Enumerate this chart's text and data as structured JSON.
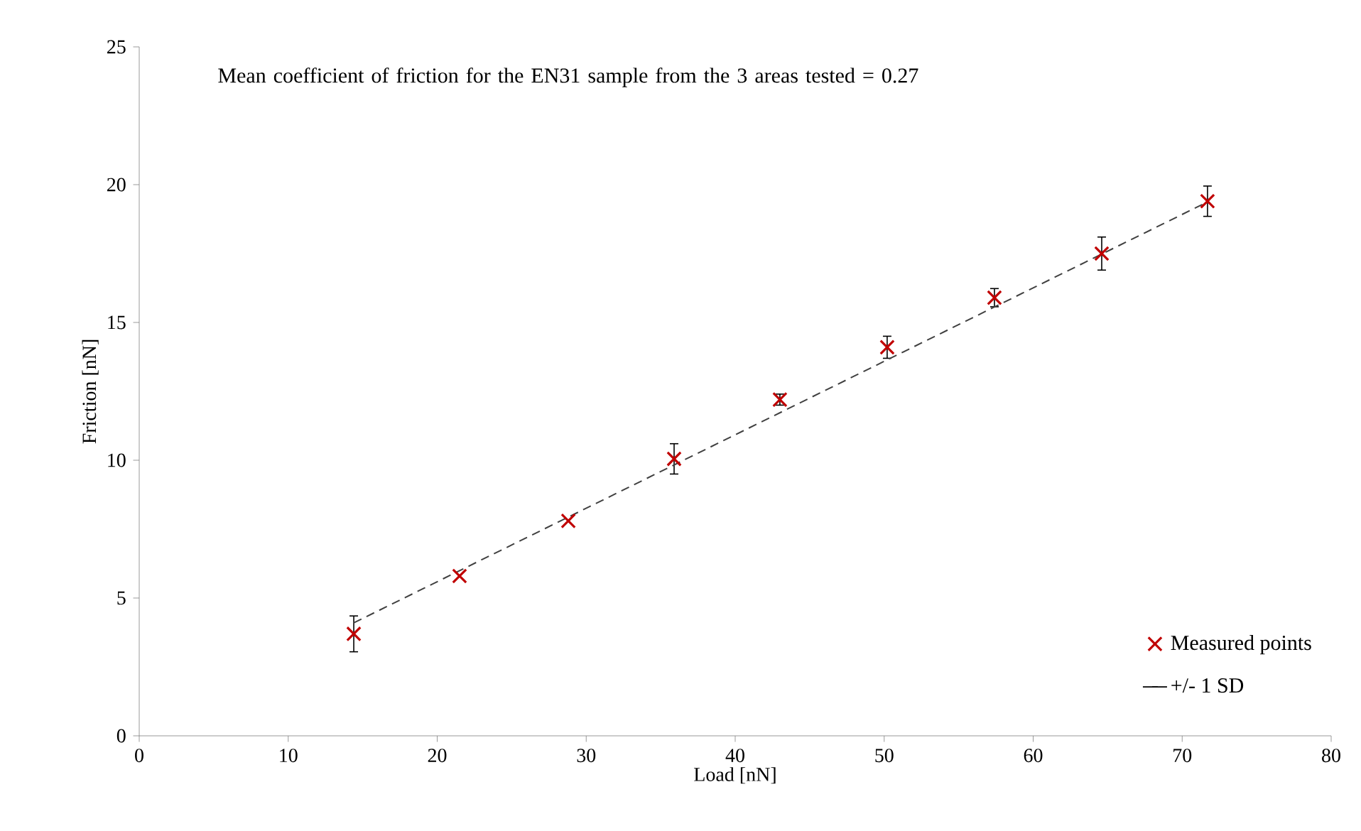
{
  "chart_data": {
    "type": "scatter",
    "xlabel": "Load [nN]",
    "ylabel": "Friction [nN]",
    "annotations": [
      "Mean coefficient of friction for the EN31 sample from the 3 areas tested = 0.27",
      "+/- 1 SD"
    ],
    "xlim": [
      0,
      80
    ],
    "xticks": [
      0,
      10,
      20,
      30,
      40,
      50,
      60,
      70,
      80
    ],
    "ylim": [
      0,
      25
    ],
    "yticks": [
      0,
      5,
      10,
      15,
      20,
      25
    ],
    "legend": "bottom right",
    "grid": false,
    "series": [
      {
        "name": "Measured points",
        "marker": "cross",
        "color": "#c00000",
        "x": [
          14.4,
          21.5,
          28.8,
          35.9,
          43.0,
          50.2,
          57.4,
          64.6,
          71.7
        ],
        "values": [
          3.7,
          5.8,
          7.8,
          10.05,
          12.2,
          14.1,
          15.9,
          17.5,
          19.4
        ],
        "errors": [
          0.65,
          null,
          null,
          0.55,
          0.2,
          0.4,
          0.33,
          0.6,
          0.55
        ]
      },
      {
        "type": "line",
        "marker": "none",
        "color": "#404040",
        "line_style": "dashed",
        "x": [
          14.4,
          71.8
        ],
        "values": [
          4.1,
          19.4
        ]
      }
    ]
  }
}
